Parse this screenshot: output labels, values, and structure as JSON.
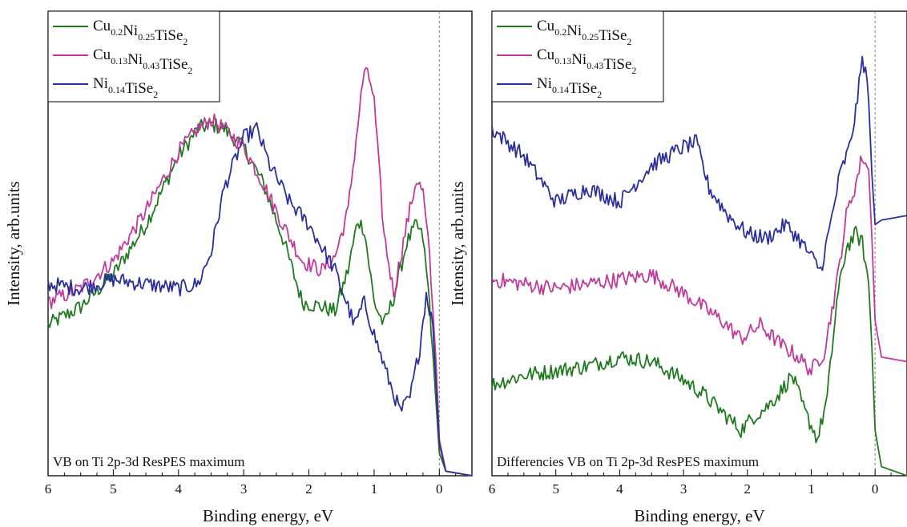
{
  "chart_data": [
    {
      "type": "line",
      "xlabel": "Binding energy, eV",
      "ylabel": "Intensity, arb.units",
      "xlim": [
        6,
        -0.5
      ],
      "ylim": [
        0,
        1
      ],
      "x_reversed": true,
      "x_ticks": [
        "6",
        "5",
        "4",
        "3",
        "2",
        "1",
        "0"
      ],
      "x_tick_values": [
        6,
        5,
        4,
        3,
        2,
        1,
        0
      ],
      "fermi_level_x": 0,
      "annotation": "VB on Ti 2p-3d ResPES maximum",
      "legend_location": "top-left",
      "series": [
        {
          "name": "Cu0.2Ni0.25TiSe2",
          "color": "#1f7a1f",
          "x": [
            6.0,
            5.5,
            5.0,
            4.5,
            4.0,
            3.7,
            3.5,
            3.3,
            3.0,
            2.7,
            2.4,
            2.1,
            1.8,
            1.6,
            1.4,
            1.25,
            1.15,
            1.0,
            0.85,
            0.7,
            0.5,
            0.35,
            0.25,
            0.15,
            0.05,
            0.0,
            -0.1,
            -0.5
          ],
          "y": [
            0.33,
            0.37,
            0.44,
            0.55,
            0.7,
            0.76,
            0.77,
            0.76,
            0.72,
            0.64,
            0.52,
            0.38,
            0.37,
            0.36,
            0.45,
            0.56,
            0.54,
            0.38,
            0.33,
            0.39,
            0.51,
            0.55,
            0.52,
            0.38,
            0.16,
            0.05,
            0.01,
            0.0
          ]
        },
        {
          "name": "Cu0.13Ni0.43TiSe2",
          "color": "#c0399b",
          "x": [
            6.0,
            5.5,
            5.0,
            4.5,
            4.0,
            3.7,
            3.5,
            3.3,
            3.0,
            2.7,
            2.4,
            2.1,
            1.8,
            1.6,
            1.4,
            1.25,
            1.15,
            1.05,
            1.0,
            0.85,
            0.7,
            0.5,
            0.35,
            0.25,
            0.15,
            0.05,
            0.0,
            -0.1,
            -0.5
          ],
          "y": [
            0.38,
            0.41,
            0.47,
            0.58,
            0.71,
            0.76,
            0.78,
            0.76,
            0.72,
            0.64,
            0.55,
            0.47,
            0.45,
            0.48,
            0.58,
            0.77,
            0.89,
            0.86,
            0.82,
            0.53,
            0.4,
            0.55,
            0.65,
            0.62,
            0.48,
            0.25,
            0.08,
            0.01,
            0.0
          ]
        },
        {
          "name": "Ni0.14TiSe2",
          "color": "#2a2f9c",
          "x": [
            6.0,
            5.5,
            5.0,
            4.5,
            4.0,
            3.7,
            3.5,
            3.3,
            3.0,
            2.8,
            2.6,
            2.3,
            2.0,
            1.8,
            1.6,
            1.4,
            1.3,
            1.15,
            1.0,
            0.8,
            0.6,
            0.45,
            0.3,
            0.2,
            0.1,
            0.05,
            0.0,
            -0.1,
            -0.5
          ],
          "y": [
            0.42,
            0.41,
            0.43,
            0.42,
            0.41,
            0.42,
            0.49,
            0.63,
            0.74,
            0.76,
            0.68,
            0.6,
            0.55,
            0.5,
            0.45,
            0.37,
            0.33,
            0.38,
            0.31,
            0.22,
            0.14,
            0.17,
            0.28,
            0.4,
            0.33,
            0.2,
            0.07,
            0.01,
            0.0
          ]
        }
      ]
    },
    {
      "type": "line",
      "xlabel": "Binding energy, eV",
      "ylabel": "Intensity, arb.units",
      "xlim": [
        6,
        -0.5
      ],
      "ylim": [
        0,
        1
      ],
      "x_reversed": true,
      "x_ticks": [
        "6",
        "5",
        "4",
        "3",
        "2",
        "1",
        "0"
      ],
      "x_tick_values": [
        6,
        5,
        4,
        3,
        2,
        1,
        0
      ],
      "fermi_level_x": 0,
      "annotation": "Differencies VB on Ti 2p-3d ResPES maximum",
      "legend_location": "top-left",
      "series": [
        {
          "name": "Cu0.2Ni0.25TiSe2",
          "color": "#1f7a1f",
          "x": [
            6.0,
            5.5,
            5.0,
            4.5,
            4.0,
            3.5,
            3.0,
            2.7,
            2.4,
            2.1,
            1.9,
            1.7,
            1.5,
            1.3,
            1.1,
            0.9,
            0.75,
            0.6,
            0.45,
            0.3,
            0.2,
            0.1,
            0.05,
            0.0,
            -0.1,
            -0.5
          ],
          "y": [
            0.2,
            0.22,
            0.23,
            0.24,
            0.26,
            0.25,
            0.21,
            0.18,
            0.14,
            0.1,
            0.13,
            0.15,
            0.18,
            0.22,
            0.14,
            0.08,
            0.17,
            0.38,
            0.5,
            0.53,
            0.51,
            0.42,
            0.28,
            0.1,
            0.02,
            0.0
          ]
        },
        {
          "name": "Cu0.13Ni0.43TiSe2",
          "color": "#c0399b",
          "x": [
            6.0,
            5.5,
            5.0,
            4.5,
            4.0,
            3.5,
            3.0,
            2.7,
            2.4,
            2.1,
            1.8,
            1.5,
            1.2,
            1.0,
            0.8,
            0.6,
            0.45,
            0.3,
            0.2,
            0.1,
            0.05,
            0.0,
            -0.1,
            -0.5
          ],
          "y": [
            0.43,
            0.42,
            0.41,
            0.42,
            0.43,
            0.44,
            0.4,
            0.37,
            0.34,
            0.3,
            0.33,
            0.29,
            0.26,
            0.23,
            0.27,
            0.42,
            0.57,
            0.64,
            0.7,
            0.67,
            0.52,
            0.34,
            0.26,
            0.25
          ]
        },
        {
          "name": "Ni0.14TiSe2",
          "color": "#2a2f9c",
          "x": [
            6.0,
            5.5,
            5.0,
            4.5,
            4.0,
            3.5,
            3.0,
            2.8,
            2.6,
            2.3,
            2.0,
            1.7,
            1.4,
            1.2,
            1.0,
            0.85,
            0.7,
            0.55,
            0.4,
            0.3,
            0.2,
            0.15,
            0.1,
            0.05,
            0.0,
            -0.1,
            -0.5
          ],
          "y": [
            0.76,
            0.7,
            0.6,
            0.63,
            0.6,
            0.68,
            0.72,
            0.73,
            0.63,
            0.57,
            0.53,
            0.52,
            0.55,
            0.52,
            0.48,
            0.45,
            0.55,
            0.66,
            0.72,
            0.8,
            0.91,
            0.89,
            0.82,
            0.66,
            0.55,
            0.56,
            0.57
          ]
        }
      ]
    }
  ],
  "legend_labels": [
    {
      "base": "Cu",
      "s1": "0.2",
      "mid": "Ni",
      "s2": "0.25",
      "tail": "TiSe",
      "s3": "2"
    },
    {
      "base": "Cu",
      "s1": "0.13",
      "mid": "Ni",
      "s2": "0.43",
      "tail": "TiSe",
      "s3": "2"
    },
    {
      "base": "",
      "s1": "",
      "mid": "Ni",
      "s2": "0.14",
      "tail": "TiSe",
      "s3": "2"
    }
  ]
}
